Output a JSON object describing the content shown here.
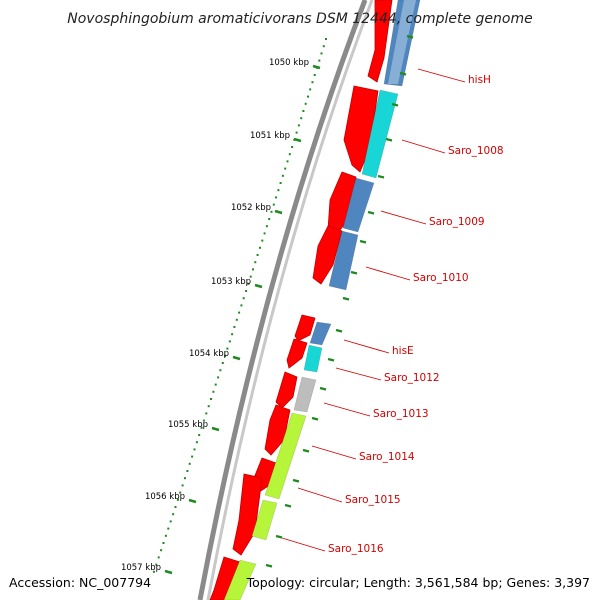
{
  "title": "Novosphingobium aromaticivorans DSM 12444, complete genome",
  "footer": {
    "accession": "Accession: NC_007794",
    "topology": "Topology: circular; Length: 3,561,584 bp; Genes: 3,397"
  },
  "colors": {
    "backbone": "#7a7a7a",
    "forward": "#ff0000",
    "steelblue": "#4f86bf",
    "cyan": "#19d6d6",
    "grey": "#bdbdbd",
    "lime": "#b6f53a",
    "label": "#d40000",
    "tick": "#1f8a1f"
  },
  "scale": {
    "ticks": [
      {
        "label": "1050 kbp"
      },
      {
        "label": "1051 kbp"
      },
      {
        "label": "1052 kbp"
      },
      {
        "label": "1053 kbp"
      },
      {
        "label": "1054 kbp"
      },
      {
        "label": "1055 kbp"
      },
      {
        "label": "1056 kbp"
      },
      {
        "label": "1057 kbp"
      }
    ]
  },
  "genes": [
    {
      "name": "hisH",
      "cog_color": "steelblue"
    },
    {
      "name": "Saro_1008",
      "cog_color": "cyan"
    },
    {
      "name": "Saro_1009",
      "cog_color": "steelblue"
    },
    {
      "name": "Saro_1010",
      "cog_color": "steelblue"
    },
    {
      "name": "hisE",
      "cog_color": "steelblue"
    },
    {
      "name": "Saro_1012",
      "cog_color": "cyan"
    },
    {
      "name": "Saro_1013",
      "cog_color": "grey"
    },
    {
      "name": "Saro_1014",
      "cog_color": "lime"
    },
    {
      "name": "Saro_1015",
      "cog_color": "lime"
    },
    {
      "name": "Saro_1016",
      "cog_color": "lime"
    }
  ]
}
